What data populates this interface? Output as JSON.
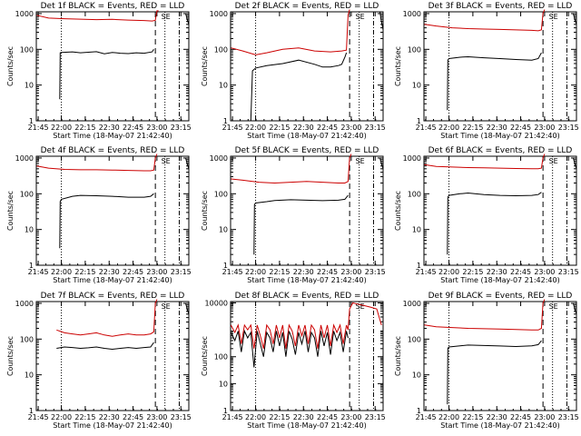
{
  "chart_data": [
    {
      "type": "line",
      "title": "Det 1f BLACK = Events, RED = LLD",
      "xlabel": "Start Time (18-May-07 21:42:40)",
      "ylabel": "Counts/sec",
      "xticks": [
        "21:45",
        "22:00",
        "22:15",
        "22:30",
        "22:45",
        "23:00",
        "23:15"
      ],
      "yticks": [
        "1",
        "10",
        "100",
        "1000"
      ],
      "xlim": [
        2.3,
        98
      ],
      "ylim": [
        0,
        3.05
      ],
      "yscale": "log",
      "markers": {
        "dotted": [
          18,
          83
        ],
        "dashed": [
          77
        ],
        "dashdot": [
          92
        ]
      },
      "se_label": "SE",
      "se_x": 83,
      "series": [
        {
          "color": "#cc0000",
          "x": [
            2.5,
            10,
            20,
            30,
            40,
            50,
            60,
            70,
            75,
            77,
            78,
            79
          ],
          "y": [
            900,
            750,
            720,
            700,
            680,
            690,
            660,
            640,
            620,
            650,
            1200,
            1200
          ]
        },
        {
          "color": "#000000",
          "x": [
            17,
            17.3,
            18,
            25,
            30,
            40,
            45,
            50,
            55,
            60,
            65,
            70,
            75,
            76
          ],
          "y": [
            4,
            80,
            82,
            85,
            80,
            86,
            75,
            82,
            78,
            76,
            80,
            78,
            85,
            100
          ]
        },
        {
          "color": "#000000",
          "x": [
            96,
            97,
            98
          ],
          "y": [
            1000,
            700,
            500
          ]
        }
      ]
    },
    {
      "type": "line",
      "title": "Det 2f BLACK = Events, RED = LLD",
      "xlabel": "Start Time (18-May-07 21:42:40)",
      "ylabel": "Counts/sec",
      "xticks": [
        "21:45",
        "22:00",
        "22:15",
        "22:30",
        "22:45",
        "23:00",
        "23:15"
      ],
      "yticks": [
        "1",
        "10",
        "100",
        "1000"
      ],
      "xlim": [
        2.3,
        98
      ],
      "ylim": [
        0,
        3.05
      ],
      "yscale": "log",
      "markers": {
        "dotted": [
          18,
          83
        ],
        "dashed": [
          77
        ],
        "dashdot": [
          92
        ]
      },
      "se_label": "SE",
      "se_x": 83,
      "series": [
        {
          "color": "#cc0000",
          "x": [
            2.5,
            10,
            18,
            25,
            35,
            45,
            55,
            65,
            72,
            75,
            76,
            77
          ],
          "y": [
            110,
            90,
            70,
            80,
            100,
            110,
            90,
            85,
            90,
            95,
            900,
            1300
          ]
        },
        {
          "color": "#000000",
          "x": [
            15,
            16,
            18,
            25,
            35,
            45,
            55,
            60,
            65,
            70,
            72,
            74,
            75
          ],
          "y": [
            1,
            25,
            30,
            35,
            40,
            50,
            38,
            32,
            32,
            35,
            38,
            60,
            80
          ]
        },
        {
          "color": "#000000",
          "x": [
            96,
            97,
            98
          ],
          "y": [
            1100,
            600,
            350
          ]
        }
      ]
    },
    {
      "type": "line",
      "title": "Det 3f BLACK = Events, RED = LLD",
      "xlabel": "Start Time (18-May-07 21:42:40)",
      "ylabel": "Counts/sec",
      "xticks": [
        "21:45",
        "22:00",
        "22:15",
        "22:30",
        "22:45",
        "23:00",
        "23:15"
      ],
      "yticks": [
        "1",
        "10",
        "100",
        "1000"
      ],
      "xlim": [
        2.3,
        98
      ],
      "ylim": [
        0,
        3.05
      ],
      "yscale": "log",
      "markers": {
        "dotted": [
          18,
          83
        ],
        "dashed": [
          77
        ],
        "dashdot": [
          92
        ]
      },
      "se_label": "SE",
      "se_x": 83,
      "series": [
        {
          "color": "#cc0000",
          "x": [
            2.5,
            10,
            20,
            30,
            40,
            50,
            60,
            70,
            74,
            76,
            77,
            78
          ],
          "y": [
            500,
            450,
            400,
            380,
            370,
            360,
            350,
            340,
            330,
            350,
            1000,
            1300
          ]
        },
        {
          "color": "#000000",
          "x": [
            17,
            17.3,
            18,
            25,
            30,
            40,
            50,
            60,
            70,
            74,
            76
          ],
          "y": [
            2,
            50,
            55,
            60,
            62,
            58,
            55,
            52,
            50,
            55,
            80
          ]
        },
        {
          "color": "#000000",
          "x": [
            96,
            97,
            98
          ],
          "y": [
            1000,
            700,
            500
          ]
        }
      ]
    },
    {
      "type": "line",
      "title": "Det 4f BLACK = Events, RED = LLD",
      "xlabel": "Start Time (18-May-07 21:42:40)",
      "ylabel": "Counts/sec",
      "xticks": [
        "21:45",
        "22:00",
        "22:15",
        "22:30",
        "22:45",
        "23:00",
        "23:15"
      ],
      "yticks": [
        "1",
        "10",
        "100",
        "1000"
      ],
      "xlim": [
        2.3,
        98
      ],
      "ylim": [
        0,
        3.05
      ],
      "yscale": "log",
      "markers": {
        "dotted": [
          18,
          83
        ],
        "dashed": [
          77
        ],
        "dashdot": [
          92
        ]
      },
      "se_label": "SE",
      "se_x": 83,
      "series": [
        {
          "color": "#cc0000",
          "x": [
            2.5,
            10,
            20,
            30,
            40,
            50,
            60,
            70,
            74,
            76,
            77,
            78
          ],
          "y": [
            600,
            520,
            480,
            470,
            470,
            460,
            450,
            440,
            440,
            460,
            1000,
            1300
          ]
        },
        {
          "color": "#000000",
          "x": [
            17,
            17.3,
            18,
            25,
            30,
            40,
            50,
            60,
            70,
            74,
            76
          ],
          "y": [
            3,
            60,
            70,
            85,
            90,
            88,
            85,
            80,
            80,
            85,
            100
          ]
        },
        {
          "color": "#000000",
          "x": [
            96,
            97,
            98
          ],
          "y": [
            1000,
            700,
            500
          ]
        }
      ]
    },
    {
      "type": "line",
      "title": "Det 5f BLACK = Events, RED = LLD",
      "xlabel": "Start Time (18-May-07 21:42:40)",
      "ylabel": "Counts/sec",
      "xticks": [
        "21:45",
        "22:00",
        "22:15",
        "22:30",
        "22:45",
        "23:00",
        "23:15"
      ],
      "yticks": [
        "1",
        "10",
        "100",
        "1000"
      ],
      "xlim": [
        2.3,
        98
      ],
      "ylim": [
        0,
        3.05
      ],
      "yscale": "log",
      "markers": {
        "dotted": [
          18,
          83
        ],
        "dashed": [
          77
        ],
        "dashdot": [
          92
        ]
      },
      "se_label": "SE",
      "se_x": 83,
      "series": [
        {
          "color": "#cc0000",
          "x": [
            2.5,
            10,
            20,
            30,
            40,
            50,
            60,
            70,
            74,
            76,
            77,
            78
          ],
          "y": [
            260,
            240,
            210,
            200,
            210,
            220,
            210,
            200,
            200,
            220,
            1000,
            1300
          ]
        },
        {
          "color": "#000000",
          "x": [
            17,
            17.3,
            18,
            25,
            30,
            40,
            50,
            60,
            70,
            74,
            76
          ],
          "y": [
            2,
            50,
            55,
            60,
            65,
            68,
            66,
            64,
            66,
            70,
            90
          ]
        },
        {
          "color": "#000000",
          "x": [
            96,
            97,
            98
          ],
          "y": [
            1000,
            700,
            500
          ]
        }
      ]
    },
    {
      "type": "line",
      "title": "Det 6f BLACK = Events, RED = LLD",
      "xlabel": "Start Time (18-May-07 21:42:40)",
      "ylabel": "Counts/sec",
      "xticks": [
        "21:45",
        "22:00",
        "22:15",
        "22:30",
        "22:45",
        "23:00",
        "23:15"
      ],
      "yticks": [
        "1",
        "10",
        "100",
        "1000"
      ],
      "xlim": [
        2.3,
        98
      ],
      "ylim": [
        0,
        3.05
      ],
      "yscale": "log",
      "markers": {
        "dotted": [
          18,
          83
        ],
        "dashed": [
          77
        ],
        "dashdot": [
          92
        ]
      },
      "se_label": "SE",
      "se_x": 83,
      "series": [
        {
          "color": "#cc0000",
          "x": [
            2.5,
            10,
            20,
            30,
            40,
            50,
            60,
            70,
            74,
            76,
            77,
            78
          ],
          "y": [
            650,
            580,
            560,
            540,
            530,
            520,
            510,
            500,
            500,
            520,
            1000,
            1300
          ]
        },
        {
          "color": "#000000",
          "x": [
            17,
            17.3,
            18,
            25,
            30,
            40,
            50,
            60,
            70,
            74,
            76
          ],
          "y": [
            2,
            80,
            90,
            100,
            105,
            95,
            90,
            88,
            90,
            95,
            110
          ]
        },
        {
          "color": "#000000",
          "x": [
            96,
            97,
            98
          ],
          "y": [
            1000,
            700,
            500
          ]
        }
      ]
    },
    {
      "type": "line",
      "title": "Det 7f BLACK = Events, RED = LLD",
      "xlabel": "Start Time (18-May-07 21:42:40)",
      "ylabel": "Counts/sec",
      "xticks": [
        "21:45",
        "22:00",
        "22:15",
        "22:30",
        "22:45",
        "23:00",
        "23:15"
      ],
      "yticks": [
        "1",
        "10",
        "100",
        "1000"
      ],
      "xlim": [
        2.3,
        98
      ],
      "ylim": [
        0,
        3.05
      ],
      "yscale": "log",
      "markers": {
        "dotted": [
          18,
          83
        ],
        "dashed": [
          77
        ],
        "dashdot": [
          92
        ]
      },
      "se_label": "SE",
      "se_x": 83,
      "series": [
        {
          "color": "#cc0000",
          "x": [
            15,
            20,
            25,
            30,
            35,
            40,
            45,
            50,
            55,
            60,
            65,
            70,
            74,
            76,
            77,
            78
          ],
          "y": [
            180,
            150,
            140,
            130,
            140,
            150,
            130,
            120,
            130,
            140,
            130,
            130,
            140,
            160,
            1000,
            1300
          ]
        },
        {
          "color": "#000000",
          "x": [
            15,
            20,
            25,
            30,
            35,
            40,
            45,
            50,
            55,
            60,
            65,
            70,
            74,
            76
          ],
          "y": [
            55,
            60,
            58,
            55,
            57,
            60,
            55,
            52,
            55,
            58,
            55,
            58,
            60,
            80
          ]
        },
        {
          "color": "#000000",
          "x": [
            96,
            97,
            98
          ],
          "y": [
            1000,
            700,
            500
          ]
        }
      ]
    },
    {
      "type": "line",
      "title": "Det 8f BLACK = Events, RED = LLD",
      "xlabel": "Start Time (18-May-07 21:42:40)",
      "ylabel": "Counts/sec",
      "xticks": [
        "21:45",
        "22:00",
        "22:15",
        "22:30",
        "22:45",
        "23:00",
        "23:15"
      ],
      "yticks": [
        "1",
        "10",
        "100",
        "10000"
      ],
      "xlim": [
        2.3,
        98
      ],
      "ylim": [
        0,
        4.05
      ],
      "yscale": "log",
      "markers": {
        "dotted": [
          18,
          83
        ],
        "dashed": [
          77
        ],
        "dashdot": [
          92
        ]
      },
      "se_label": "SE",
      "se_x": 83,
      "series": [
        {
          "color": "#cc0000",
          "x": [
            2.5,
            5,
            7,
            9,
            11,
            13,
            15,
            17,
            19,
            21,
            23,
            25,
            27,
            29,
            31,
            33,
            35,
            37,
            39,
            41,
            43,
            45,
            47,
            49,
            51,
            53,
            55,
            57,
            59,
            61,
            63,
            65,
            67,
            69,
            71,
            73,
            75,
            76,
            77,
            79,
            82,
            86,
            90,
            94,
            97
          ],
          "y": [
            1500,
            800,
            1500,
            300,
            1500,
            1000,
            1500,
            200,
            1500,
            600,
            200,
            1500,
            1000,
            300,
            1500,
            500,
            1500,
            200,
            1500,
            900,
            250,
            1500,
            600,
            1500,
            300,
            1500,
            1000,
            200,
            1500,
            500,
            1500,
            250,
            1500,
            800,
            1500,
            300,
            1500,
            1000,
            6000,
            10000,
            9000,
            8000,
            7000,
            6000,
            1500
          ]
        },
        {
          "color": "#000000",
          "x": [
            2.5,
            5,
            7,
            9,
            11,
            13,
            15,
            17,
            19,
            21,
            23,
            25,
            27,
            29,
            31,
            33,
            35,
            37,
            39,
            41,
            43,
            45,
            47,
            49,
            51,
            53,
            55,
            57,
            59,
            61,
            63,
            65,
            67,
            69,
            71,
            73,
            75,
            76
          ],
          "y": [
            800,
            400,
            900,
            150,
            900,
            500,
            800,
            40,
            900,
            300,
            100,
            800,
            500,
            150,
            900,
            250,
            800,
            100,
            900,
            450,
            120,
            800,
            300,
            900,
            150,
            800,
            500,
            100,
            900,
            250,
            800,
            120,
            900,
            400,
            800,
            150,
            900,
            500
          ]
        }
      ]
    },
    {
      "type": "line",
      "title": "Det 9f BLACK = Events, RED = LLD",
      "xlabel": "Start Time (18-May-07 21:42:40)",
      "ylabel": "Counts/sec",
      "xticks": [
        "21:45",
        "22:00",
        "22:15",
        "22:30",
        "22:45",
        "23:00",
        "23:15"
      ],
      "yticks": [
        "1",
        "10",
        "100",
        "1000"
      ],
      "xlim": [
        2.3,
        98
      ],
      "ylim": [
        0,
        3.05
      ],
      "yscale": "log",
      "markers": {
        "dotted": [
          18,
          83
        ],
        "dashed": [
          77
        ],
        "dashdot": [
          92
        ]
      },
      "se_label": "SE",
      "se_x": 83,
      "series": [
        {
          "color": "#cc0000",
          "x": [
            2.5,
            10,
            20,
            30,
            40,
            50,
            60,
            70,
            74,
            76,
            77,
            78
          ],
          "y": [
            250,
            220,
            210,
            200,
            195,
            190,
            185,
            180,
            180,
            200,
            1000,
            1300
          ]
        },
        {
          "color": "#000000",
          "x": [
            17,
            17.3,
            18,
            25,
            30,
            40,
            50,
            60,
            70,
            74,
            76
          ],
          "y": [
            1.5,
            55,
            60,
            65,
            68,
            66,
            64,
            62,
            65,
            70,
            90
          ]
        },
        {
          "color": "#000000",
          "x": [
            96,
            97,
            98
          ],
          "y": [
            1000,
            700,
            500
          ]
        }
      ]
    }
  ]
}
